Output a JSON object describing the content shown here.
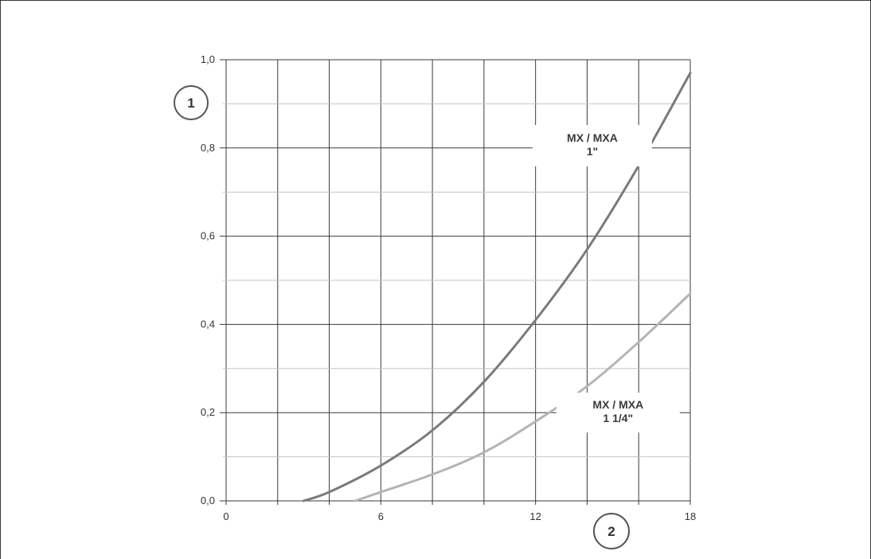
{
  "chart_data": {
    "type": "line",
    "title": "",
    "xlabel": "",
    "ylabel": "",
    "xlim": [
      0,
      18
    ],
    "ylim": [
      0,
      1.0
    ],
    "x_ticks": [
      "0",
      "6",
      "12",
      "18"
    ],
    "y_ticks": [
      "0,0",
      "0,2",
      "0,4",
      "0,6",
      "0,8",
      "1,0"
    ],
    "grid": true,
    "axis_markers": {
      "y": "1",
      "x": "2"
    },
    "series": [
      {
        "label_lines": [
          "MX / MXA",
          "1\""
        ],
        "color": "#7a7a7a",
        "x": [
          3,
          4,
          6,
          8,
          10,
          12,
          14,
          16,
          18
        ],
        "y": [
          0.0,
          0.02,
          0.08,
          0.16,
          0.27,
          0.41,
          0.57,
          0.76,
          0.97
        ]
      },
      {
        "label_lines": [
          "MX / MXA",
          "1 1/4\""
        ],
        "color": "#b4b4b4",
        "x": [
          5,
          6,
          8,
          10,
          12,
          14,
          16,
          18
        ],
        "y": [
          0.0,
          0.02,
          0.06,
          0.11,
          0.18,
          0.26,
          0.36,
          0.47
        ]
      }
    ]
  }
}
